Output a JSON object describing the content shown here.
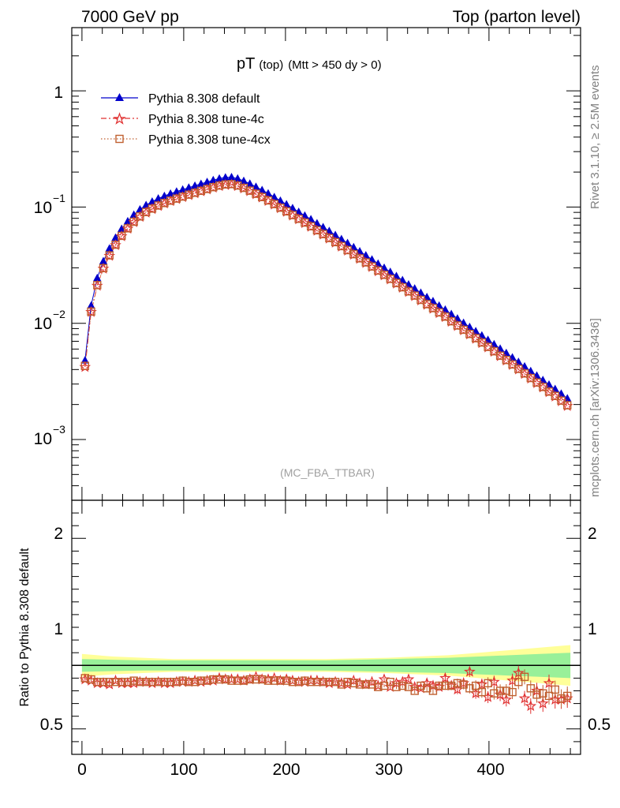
{
  "header": {
    "left": "7000 GeV pp",
    "right": "Top (parton level)"
  },
  "side_labels": {
    "rivet": "Rivet 3.1.10, ≥ 2.5M events",
    "mcplots": "mcplots.cern.ch [arXiv:1306.3436]"
  },
  "chart_data": [
    {
      "type": "line",
      "title_main": "pT",
      "title_sub": "(top)",
      "title_cut": "(Mtt > 450 dy > 0)",
      "watermark": "(MC_FBA_TTBAR)",
      "yscale": "log",
      "xlim": [
        -10,
        490
      ],
      "ylim": [
        0.0003,
        3.5
      ],
      "y_tick_labels": [
        "1",
        "10",
        "10",
        "10"
      ],
      "y_tick_exponents": [
        "",
        "−1",
        "−2",
        "−3"
      ],
      "legend_position": "top-left",
      "series": [
        {
          "name": "Pythia 8.308 default",
          "color": "#0000cc",
          "marker": "triangle",
          "line": "solid",
          "x": [
            3,
            9,
            15,
            21,
            27,
            33,
            39,
            45,
            51,
            57,
            63,
            69,
            75,
            81,
            87,
            93,
            99,
            105,
            111,
            117,
            123,
            129,
            135,
            141,
            147,
            153,
            159,
            165,
            171,
            177,
            183,
            189,
            195,
            201,
            207,
            213,
            219,
            225,
            231,
            237,
            243,
            249,
            255,
            261,
            267,
            273,
            279,
            285,
            291,
            297,
            303,
            309,
            315,
            321,
            327,
            333,
            339,
            345,
            351,
            357,
            363,
            369,
            375,
            381,
            387,
            393,
            399,
            405,
            411,
            417,
            423,
            429,
            435,
            441,
            447,
            453,
            459,
            465,
            471,
            477
          ],
          "values": [
            0.0048,
            0.0142,
            0.0245,
            0.0342,
            0.044,
            0.0545,
            0.065,
            0.0755,
            0.086,
            0.0955,
            0.104,
            0.1115,
            0.1185,
            0.1245,
            0.1305,
            0.136,
            0.1415,
            0.147,
            0.1525,
            0.1585,
            0.1645,
            0.1705,
            0.176,
            0.18,
            0.181,
            0.176,
            0.168,
            0.159,
            0.1495,
            0.14,
            0.131,
            0.122,
            0.1135,
            0.1055,
            0.098,
            0.091,
            0.0845,
            0.0785,
            0.0725,
            0.0672,
            0.0622,
            0.0574,
            0.053,
            0.049,
            0.0452,
            0.0416,
            0.0384,
            0.0354,
            0.0326,
            0.03,
            0.0277,
            0.0255,
            0.0235,
            0.0216,
            0.0199,
            0.0183,
            0.0168,
            0.0155,
            0.0142,
            0.0131,
            0.012,
            0.011,
            0.0101,
            0.0093,
            0.00855,
            0.00785,
            0.0072,
            0.0066,
            0.00605,
            0.00555,
            0.00508,
            0.00465,
            0.00425,
            0.00388,
            0.00355,
            0.00325,
            0.00297,
            0.00272,
            0.00248,
            0.00226
          ]
        },
        {
          "name": "Pythia 8.308 tune-4c",
          "color": "#e03030",
          "marker": "star",
          "line": "dashdot",
          "x": [
            3,
            9,
            15,
            21,
            27,
            33,
            39,
            45,
            51,
            57,
            63,
            69,
            75,
            81,
            87,
            93,
            99,
            105,
            111,
            117,
            123,
            129,
            135,
            141,
            147,
            153,
            159,
            165,
            171,
            177,
            183,
            189,
            195,
            201,
            207,
            213,
            219,
            225,
            231,
            237,
            243,
            249,
            255,
            261,
            267,
            273,
            279,
            285,
            291,
            297,
            303,
            309,
            315,
            321,
            327,
            333,
            339,
            345,
            351,
            357,
            363,
            369,
            375,
            381,
            387,
            393,
            399,
            405,
            411,
            417,
            423,
            429,
            435,
            441,
            447,
            453,
            459,
            465,
            471,
            477
          ],
          "values": [
            0.0042,
            0.0125,
            0.021,
            0.0295,
            0.038,
            0.047,
            0.056,
            0.065,
            0.074,
            0.0822,
            0.0895,
            0.096,
            0.102,
            0.1072,
            0.1124,
            0.1171,
            0.1218,
            0.1265,
            0.1312,
            0.1364,
            0.1416,
            0.1468,
            0.1515,
            0.1549,
            0.1558,
            0.1515,
            0.1446,
            0.1368,
            0.1287,
            0.1205,
            0.1127,
            0.105,
            0.0977,
            0.0908,
            0.0843,
            0.0783,
            0.0727,
            0.0675,
            0.0624,
            0.0578,
            0.0535,
            0.0494,
            0.0456,
            0.0421,
            0.0389,
            0.0358,
            0.033,
            0.0304,
            0.028,
            0.0258,
            0.0238,
            0.0219,
            0.0202,
            0.0186,
            0.0171,
            0.0157,
            0.0144,
            0.0133,
            0.0122,
            0.0113,
            0.0103,
            0.00946,
            0.00869,
            0.008,
            0.00735,
            0.00675,
            0.00619,
            0.00568,
            0.0052,
            0.00477,
            0.00437,
            0.004,
            0.00366,
            0.00334,
            0.00305,
            0.0028,
            0.00255,
            0.00234,
            0.00213,
            0.00194
          ]
        },
        {
          "name": "Pythia 8.308 tune-4cx",
          "color": "#c06030",
          "marker": "open-square",
          "line": "dotted",
          "x": [
            3,
            9,
            15,
            21,
            27,
            33,
            39,
            45,
            51,
            57,
            63,
            69,
            75,
            81,
            87,
            93,
            99,
            105,
            111,
            117,
            123,
            129,
            135,
            141,
            147,
            153,
            159,
            165,
            171,
            177,
            183,
            189,
            195,
            201,
            207,
            213,
            219,
            225,
            231,
            237,
            243,
            249,
            255,
            261,
            267,
            273,
            279,
            285,
            291,
            297,
            303,
            309,
            315,
            321,
            327,
            333,
            339,
            345,
            351,
            357,
            363,
            369,
            375,
            381,
            387,
            393,
            399,
            405,
            411,
            417,
            423,
            429,
            435,
            441,
            447,
            453,
            459,
            465,
            471,
            477
          ],
          "values": [
            0.0043,
            0.0126,
            0.0213,
            0.0298,
            0.0384,
            0.0474,
            0.0565,
            0.0656,
            0.0748,
            0.0831,
            0.0905,
            0.097,
            0.1031,
            0.1083,
            0.1135,
            0.1183,
            0.1231,
            0.1279,
            0.1327,
            0.1379,
            0.1431,
            0.1483,
            0.1531,
            0.1566,
            0.1575,
            0.1531,
            0.1462,
            0.1383,
            0.1301,
            0.1218,
            0.114,
            0.1061,
            0.0987,
            0.0918,
            0.0853,
            0.0792,
            0.0735,
            0.0683,
            0.0631,
            0.0585,
            0.0541,
            0.0499,
            0.0461,
            0.0426,
            0.0393,
            0.0362,
            0.0334,
            0.0308,
            0.0284,
            0.0261,
            0.0241,
            0.0222,
            0.0204,
            0.0188,
            0.0173,
            0.0159,
            0.0146,
            0.0135,
            0.0124,
            0.0114,
            0.0104,
            0.00957,
            0.00879,
            0.00809,
            0.00744,
            0.00683,
            0.00626,
            0.00574,
            0.00526,
            0.00483,
            0.00442,
            0.00405,
            0.0037,
            0.00338,
            0.00309,
            0.00283,
            0.00258,
            0.00237,
            0.00216,
            0.00197
          ]
        }
      ]
    },
    {
      "type": "line",
      "ylabel": "Ratio to Pythia 8.308 default",
      "xlim": [
        -10,
        490
      ],
      "ylim": [
        0.3,
        2.3
      ],
      "y_ticks": [
        0.5,
        1,
        2
      ],
      "y_tick_labels": [
        "0.5",
        "1",
        "2"
      ],
      "x_ticks": [
        0,
        100,
        200,
        300,
        400
      ],
      "x_tick_labels": [
        "0",
        "100",
        "200",
        "300",
        "400"
      ],
      "band_colors": {
        "inner": "#99f099",
        "outer": "#ffff99"
      },
      "band_inner_halfwidth": [
        0.05,
        0.045,
        0.04,
        0.04,
        0.04,
        0.04,
        0.04,
        0.04,
        0.04,
        0.045,
        0.05,
        0.055,
        0.06,
        0.07,
        0.08,
        0.09,
        0.1
      ],
      "band_outer_halfwidth": [
        0.09,
        0.07,
        0.06,
        0.05,
        0.05,
        0.05,
        0.05,
        0.05,
        0.05,
        0.055,
        0.06,
        0.07,
        0.08,
        0.1,
        0.12,
        0.14,
        0.16
      ],
      "band_x": [
        0,
        30,
        60,
        90,
        120,
        150,
        180,
        210,
        240,
        270,
        300,
        330,
        360,
        390,
        420,
        450,
        480
      ],
      "reference_line": 1,
      "series": [
        {
          "name": "Pythia 8.308 tune-4c",
          "color": "#e03030",
          "marker": "star",
          "x": [
            3,
            9,
            15,
            21,
            27,
            33,
            39,
            45,
            51,
            57,
            63,
            69,
            75,
            81,
            87,
            93,
            99,
            105,
            111,
            117,
            123,
            129,
            135,
            141,
            147,
            153,
            159,
            165,
            171,
            177,
            183,
            189,
            195,
            201,
            207,
            213,
            219,
            225,
            231,
            237,
            243,
            249,
            255,
            261,
            267,
            273,
            279,
            285,
            291,
            297,
            303,
            309,
            315,
            321,
            327,
            333,
            339,
            345,
            351,
            357,
            363,
            369,
            375,
            381,
            387,
            393,
            399,
            405,
            411,
            417,
            423,
            429,
            435,
            441,
            447,
            453,
            459,
            465,
            471,
            477
          ],
          "values": [
            0.89,
            0.88,
            0.86,
            0.86,
            0.85,
            0.88,
            0.86,
            0.86,
            0.86,
            0.87,
            0.87,
            0.86,
            0.87,
            0.86,
            0.86,
            0.87,
            0.87,
            0.87,
            0.88,
            0.87,
            0.88,
            0.88,
            0.9,
            0.89,
            0.89,
            0.89,
            0.88,
            0.89,
            0.91,
            0.89,
            0.89,
            0.9,
            0.88,
            0.89,
            0.88,
            0.87,
            0.87,
            0.88,
            0.88,
            0.87,
            0.86,
            0.87,
            0.86,
            0.85,
            0.88,
            0.86,
            0.85,
            0.87,
            0.84,
            0.89,
            0.83,
            0.86,
            0.87,
            0.89,
            0.83,
            0.82,
            0.86,
            0.84,
            0.83,
            0.9,
            0.84,
            0.81,
            0.86,
            0.95,
            0.78,
            0.85,
            0.75,
            0.87,
            0.77,
            0.73,
            0.88,
            0.94,
            0.74,
            0.68,
            0.8,
            0.7,
            0.86,
            0.73,
            0.73,
            0.74
          ]
        },
        {
          "name": "Pythia 8.308 tune-4cx",
          "color": "#c06030",
          "marker": "open-square",
          "x": [
            3,
            9,
            15,
            21,
            27,
            33,
            39,
            45,
            51,
            57,
            63,
            69,
            75,
            81,
            87,
            93,
            99,
            105,
            111,
            117,
            123,
            129,
            135,
            141,
            147,
            153,
            159,
            165,
            171,
            177,
            183,
            189,
            195,
            201,
            207,
            213,
            219,
            225,
            231,
            237,
            243,
            249,
            255,
            261,
            267,
            273,
            279,
            285,
            291,
            297,
            303,
            309,
            315,
            321,
            327,
            333,
            339,
            345,
            351,
            357,
            363,
            369,
            375,
            381,
            387,
            393,
            399,
            405,
            411,
            417,
            423,
            429,
            435,
            441,
            447,
            453,
            459,
            465,
            471,
            477
          ],
          "values": [
            0.9,
            0.89,
            0.87,
            0.87,
            0.87,
            0.87,
            0.87,
            0.87,
            0.88,
            0.87,
            0.87,
            0.87,
            0.87,
            0.87,
            0.87,
            0.87,
            0.88,
            0.87,
            0.87,
            0.88,
            0.88,
            0.89,
            0.89,
            0.89,
            0.88,
            0.88,
            0.88,
            0.89,
            0.89,
            0.89,
            0.88,
            0.88,
            0.88,
            0.88,
            0.87,
            0.87,
            0.88,
            0.87,
            0.87,
            0.87,
            0.87,
            0.87,
            0.85,
            0.87,
            0.86,
            0.85,
            0.85,
            0.85,
            0.83,
            0.84,
            0.87,
            0.83,
            0.84,
            0.83,
            0.8,
            0.84,
            0.82,
            0.8,
            0.84,
            0.84,
            0.84,
            0.86,
            0.85,
            0.82,
            0.84,
            0.79,
            0.86,
            0.78,
            0.8,
            0.8,
            0.79,
            0.87,
            0.91,
            0.82,
            0.77,
            0.78,
            0.76,
            0.81,
            0.74,
            0.76
          ]
        }
      ]
    }
  ]
}
